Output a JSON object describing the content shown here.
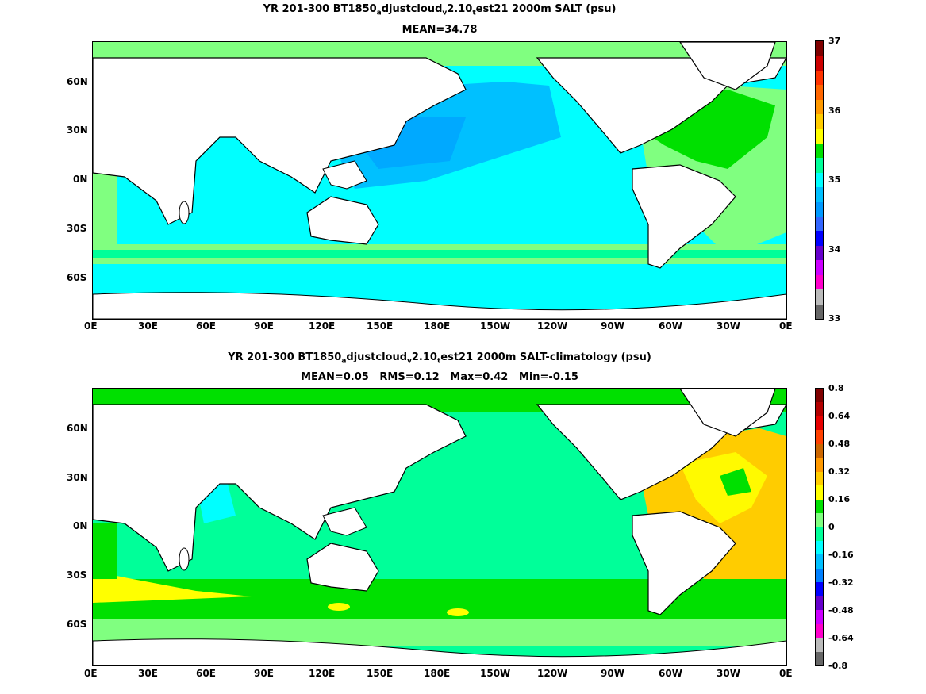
{
  "panels": [
    {
      "title_parts": [
        "YR 201-300 BT1850",
        "a",
        "djustcloud",
        "v",
        "2.10",
        "t",
        "est21 2000m SALT (psu)"
      ],
      "subtitle": "MEAN=34.78",
      "colorbar_labels": [
        "37",
        "36",
        "35",
        "34",
        "33"
      ],
      "colorbar_colors": [
        "#7f0000",
        "#cc0000",
        "#ff3300",
        "#ff6600",
        "#ff9900",
        "#ffcc00",
        "#ffff00",
        "#00e000",
        "#00ff99",
        "#00ffff",
        "#00c0ff",
        "#0099ff",
        "#3366ff",
        "#0000ff",
        "#6600cc",
        "#cc00ff",
        "#ff00cc",
        "#bbbbbb",
        "#666666"
      ]
    },
    {
      "title_parts": [
        "YR 201-300 BT1850",
        "a",
        "djustcloud",
        "v",
        "2.10",
        "t",
        "est21 2000m SALT-climatology (psu)"
      ],
      "subtitle": "MEAN=0.05   RMS=0.12   Max=0.42   Min=-0.15",
      "colorbar_labels": [
        "0.8",
        "0.64",
        "0.48",
        "0.32",
        "0.16",
        "0",
        "-0.16",
        "-0.32",
        "-0.48",
        "-0.64",
        "-0.8"
      ],
      "colorbar_colors": [
        "#7f0000",
        "#b30000",
        "#e60000",
        "#ff4000",
        "#cc6600",
        "#ff9900",
        "#ffcc00",
        "#ffff00",
        "#00e000",
        "#80ff80",
        "#00ff99",
        "#00ffff",
        "#00c0ff",
        "#0080ff",
        "#0000ff",
        "#6600cc",
        "#cc00ff",
        "#ff00cc",
        "#bbbbbb",
        "#666666"
      ]
    }
  ],
  "x_ticks": [
    "0E",
    "30E",
    "60E",
    "90E",
    "120E",
    "150E",
    "180E",
    "150W",
    "120W",
    "90W",
    "60W",
    "30W",
    "0E"
  ],
  "y_ticks": [
    "60N",
    "30N",
    "0N",
    "30S",
    "60S"
  ]
}
